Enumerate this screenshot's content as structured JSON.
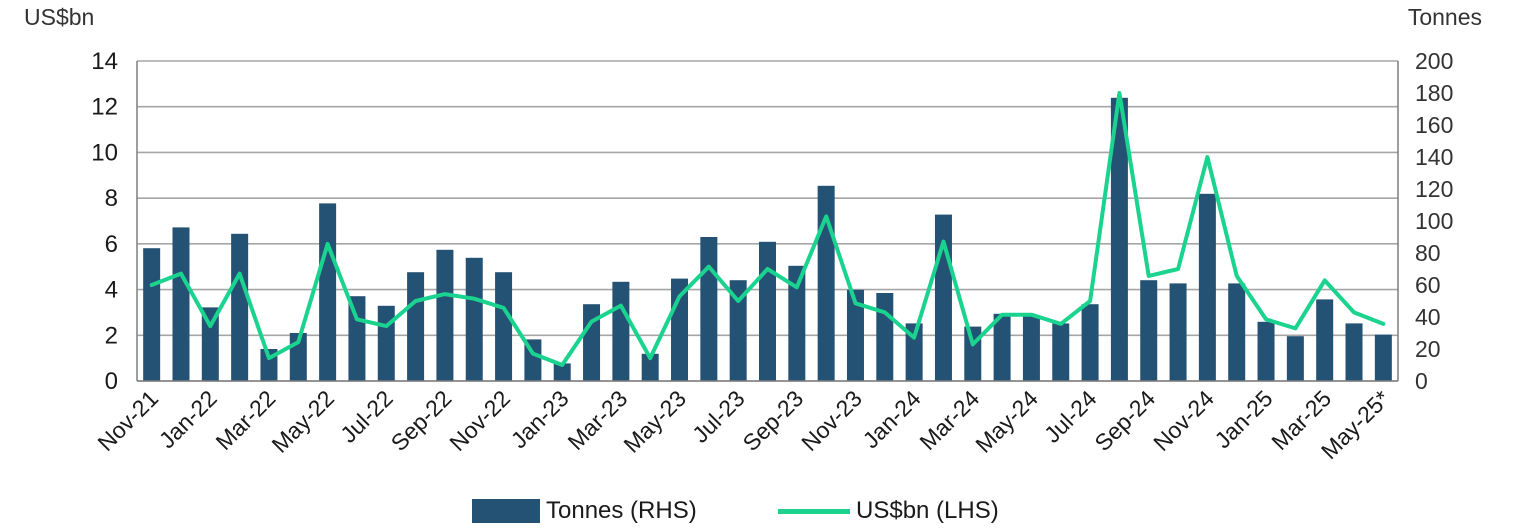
{
  "chart_data": {
    "type": "bar",
    "left_axis_unit": "US$bn",
    "right_axis_unit": "Tonnes",
    "ylim_left": [
      0,
      14
    ],
    "yticks_left": [
      0,
      2,
      4,
      6,
      8,
      10,
      12,
      14
    ],
    "ylim_right": [
      0,
      200
    ],
    "yticks_right": [
      0,
      20,
      40,
      60,
      80,
      100,
      120,
      140,
      160,
      180,
      200
    ],
    "grid": true,
    "legend_position": "bottom",
    "colors": {
      "bar": "#245274",
      "line": "#1ad38f",
      "grid": "#a6a6a6"
    },
    "categories": [
      "Nov-21",
      "Dec-21",
      "Jan-22",
      "Feb-22",
      "Mar-22",
      "Apr-22",
      "May-22",
      "Jun-22",
      "Jul-22",
      "Aug-22",
      "Sep-22",
      "Oct-22",
      "Nov-22",
      "Dec-22",
      "Jan-23",
      "Feb-23",
      "Mar-23",
      "Apr-23",
      "May-23",
      "Jun-23",
      "Jul-23",
      "Aug-23",
      "Sep-23",
      "Oct-23",
      "Nov-23",
      "Dec-23",
      "Jan-24",
      "Feb-24",
      "Mar-24",
      "Apr-24",
      "May-24",
      "Jun-24",
      "Jul-24",
      "Aug-24",
      "Sep-24",
      "Oct-24",
      "Nov-24",
      "Dec-24",
      "Jan-25",
      "Feb-25",
      "Mar-25",
      "Apr-25",
      "May-25*"
    ],
    "tick_labels": [
      "Nov-21",
      "Jan-22",
      "Mar-22",
      "May-22",
      "Jul-22",
      "Sep-22",
      "Nov-22",
      "Jan-23",
      "Mar-23",
      "May-23",
      "Jul-23",
      "Sep-23",
      "Nov-23",
      "Jan-24",
      "Mar-24",
      "May-24",
      "Jul-24",
      "Sep-24",
      "Nov-24",
      "Jan-25",
      "Mar-25",
      "May-25*"
    ],
    "series": [
      {
        "name": "Tonnes (RHS)",
        "type": "bar",
        "axis": "right",
        "values": [
          83,
          96,
          46,
          92,
          20,
          30,
          111,
          53,
          47,
          68,
          82,
          77,
          68,
          26,
          11,
          48,
          62,
          17,
          64,
          90,
          63,
          87,
          72,
          122,
          57,
          55,
          36,
          104,
          34,
          42,
          41,
          36,
          48,
          177,
          63,
          61,
          117,
          61,
          37,
          28,
          51,
          36,
          29
        ]
      },
      {
        "name": "US$bn (LHS)",
        "type": "line",
        "axis": "left",
        "values": [
          4.2,
          4.7,
          2.4,
          4.7,
          1.0,
          1.7,
          6.0,
          2.7,
          2.4,
          3.5,
          3.8,
          3.6,
          3.2,
          1.2,
          0.7,
          2.6,
          3.3,
          1.0,
          3.7,
          5.0,
          3.5,
          4.9,
          4.1,
          7.2,
          3.4,
          3.0,
          1.9,
          6.1,
          1.6,
          2.9,
          2.9,
          2.5,
          3.5,
          12.6,
          4.6,
          4.9,
          9.8,
          4.6,
          2.7,
          2.3,
          4.4,
          3.0,
          2.5
        ]
      }
    ]
  },
  "legend": {
    "tonnes_label": "Tonnes (RHS)",
    "usd_label": "US$bn (LHS)"
  },
  "axes": {
    "left_unit": "US$bn",
    "right_unit": "Tonnes"
  }
}
